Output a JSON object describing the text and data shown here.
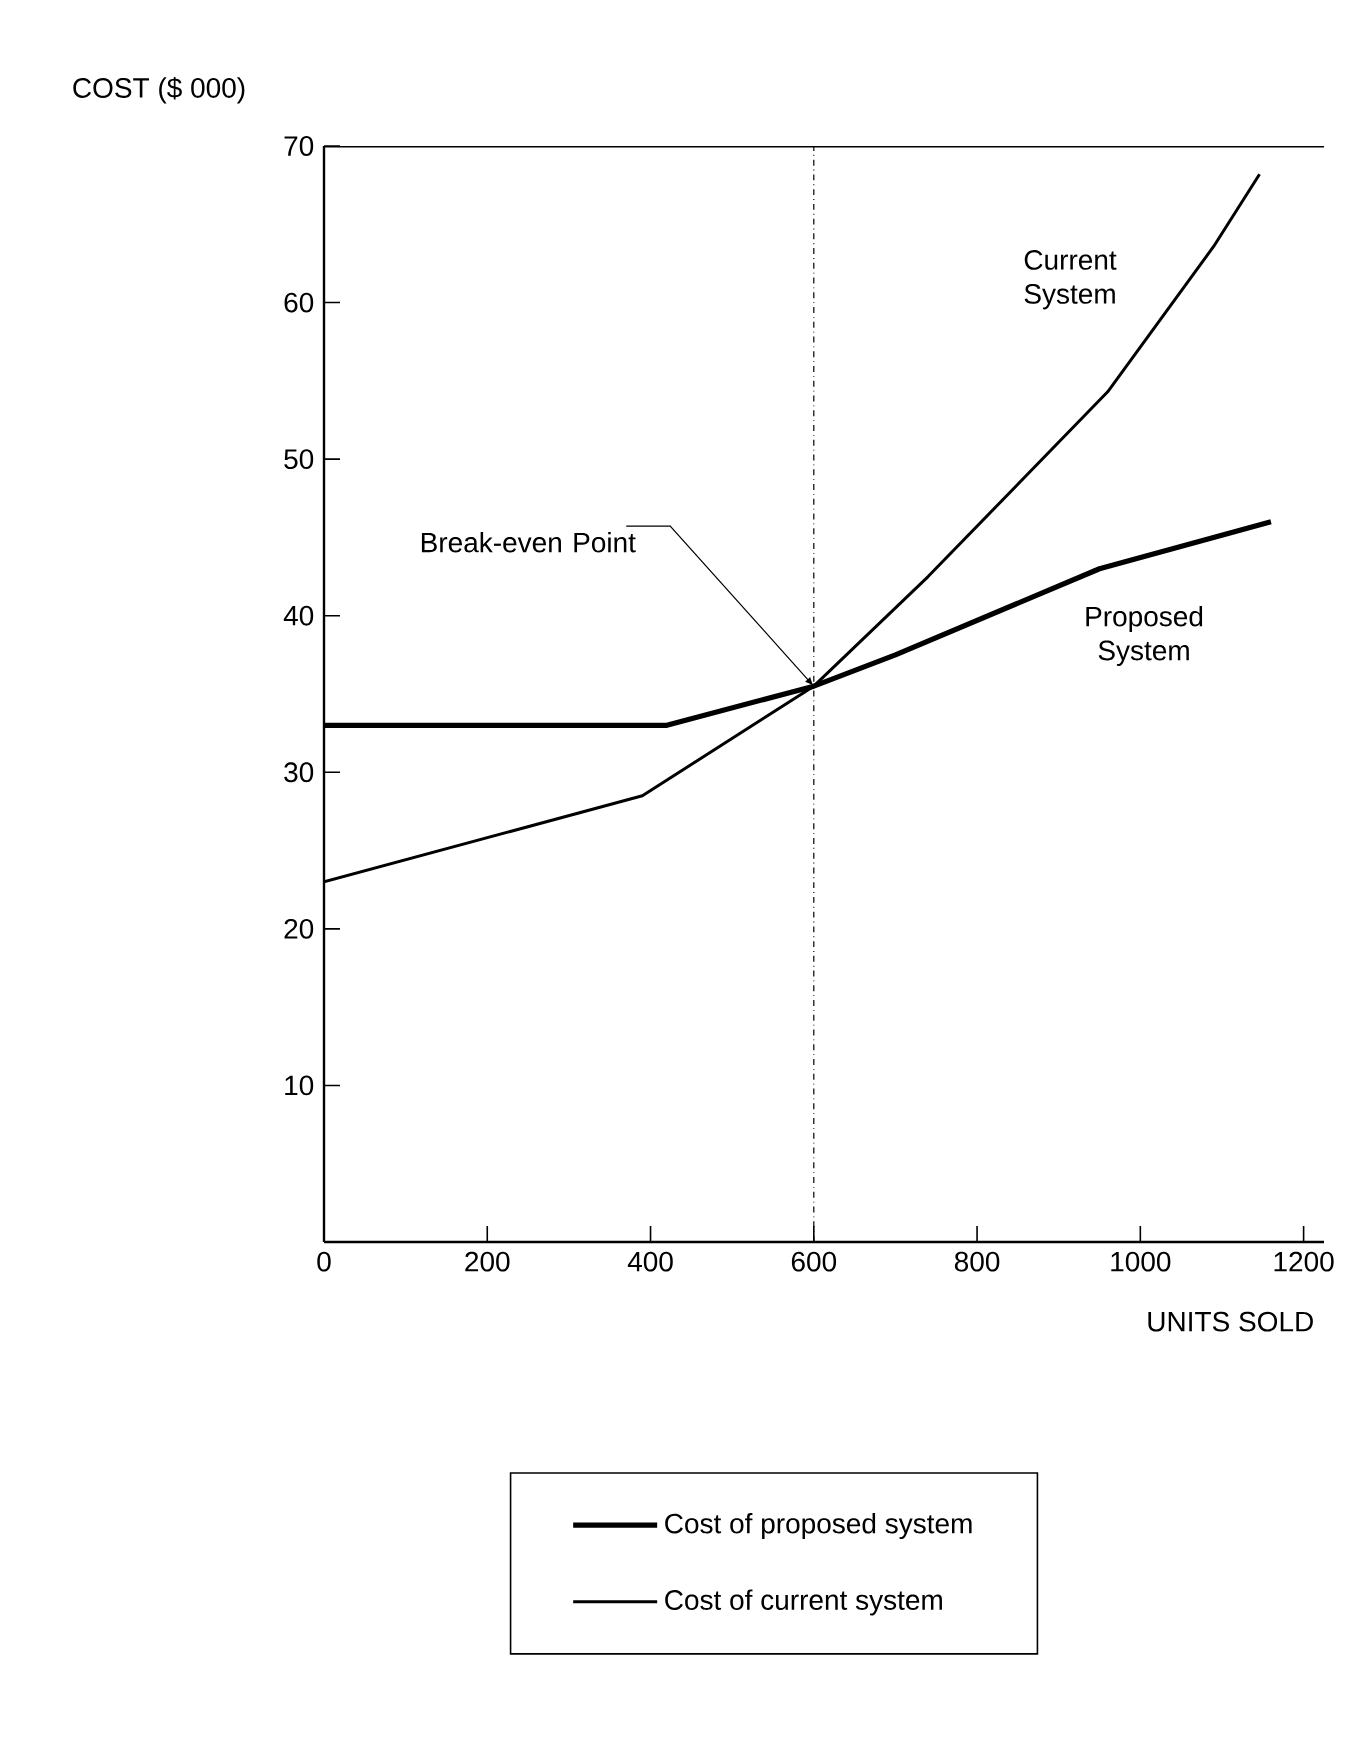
{
  "chart_data": {
    "type": "line",
    "xlabel": "UNITS SOLD",
    "ylabel": "COST ($ 000)",
    "xlim": [
      0,
      1225
    ],
    "ylim": [
      0,
      70
    ],
    "xticks": [
      0,
      200,
      400,
      600,
      800,
      1000,
      1200
    ],
    "yticks": [
      10,
      20,
      30,
      40,
      50,
      60,
      70
    ],
    "series": [
      {
        "name": "Cost of proposed system",
        "color": "#000000",
        "x": [
          0,
          420,
          600,
          700,
          950,
          1160
        ],
        "values": [
          33,
          33,
          35.5,
          37.5,
          43,
          46
        ]
      },
      {
        "name": "Cost of current system",
        "color": "#000000",
        "x": [
          0,
          390,
          600,
          740,
          960,
          1090,
          1146
        ],
        "values": [
          23,
          28.5,
          35.5,
          42.5,
          54.3,
          63.6,
          68.2
        ]
      }
    ],
    "ref_lines": [
      {
        "axis": "x",
        "value": 600,
        "line_style": "dashdotted"
      }
    ],
    "annotations": [
      {
        "text": "Break-even Point",
        "x": 600,
        "y": 35.5
      },
      "Current System",
      "Proposed System"
    ],
    "legend": "bottom",
    "grid": false,
    "marker": "none",
    "line_style": "solid"
  }
}
